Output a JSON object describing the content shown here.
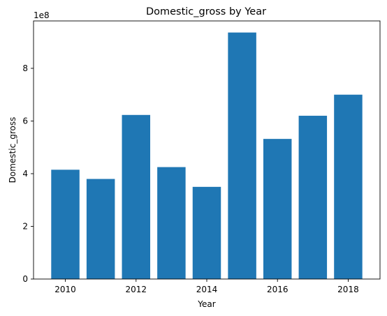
{
  "chart_data": {
    "type": "bar",
    "title": "Domestic_gross by Year",
    "xlabel": "Year",
    "ylabel": "Domestic_gross",
    "y_offset_label": "1e8",
    "x": [
      2010,
      2011,
      2012,
      2013,
      2014,
      2015,
      2016,
      2017,
      2018
    ],
    "values": [
      415000000,
      380000000,
      623000000,
      425000000,
      350000000,
      936000000,
      532000000,
      620000000,
      700000000
    ],
    "xticks": [
      2010,
      2012,
      2014,
      2016,
      2018
    ],
    "xtick_labels": [
      "2010",
      "2012",
      "2014",
      "2016",
      "2018"
    ],
    "yticks": [
      0,
      2,
      4,
      6,
      8
    ],
    "ytick_labels": [
      "0",
      "2",
      "4",
      "6",
      "8"
    ],
    "xlim": [
      2009.1,
      2018.9
    ],
    "ylim": [
      0,
      9.8
    ],
    "bar_color": "#1f77b4",
    "grid": false,
    "legend": false
  }
}
